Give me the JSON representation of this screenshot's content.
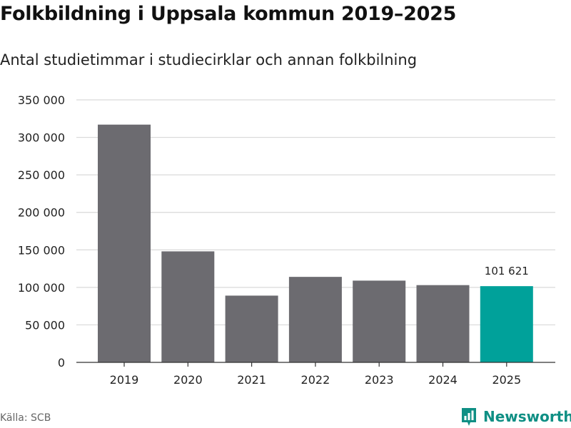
{
  "header": {
    "title": "Folkbildning i Uppsala kommun 2019–2025",
    "subtitle": "Antal studietimmar i studiecirklar och annan folkbilning"
  },
  "footer": {
    "source": "Källa: SCB",
    "brand": "Newsworthy"
  },
  "colors": {
    "bar": "#6c6b70",
    "highlight": "#00a19a",
    "grid": "#d9d9d9",
    "axis": "#333333",
    "text": "#222222"
  },
  "chart_data": {
    "type": "bar",
    "title": "Folkbildning i Uppsala kommun 2019–2025",
    "subtitle": "Antal studietimmar i studiecirklar och annan folkbilning",
    "xlabel": "",
    "ylabel": "",
    "categories": [
      "2019",
      "2020",
      "2021",
      "2022",
      "2023",
      "2024",
      "2025"
    ],
    "values": [
      317000,
      148000,
      89000,
      114000,
      109000,
      103000,
      101621
    ],
    "ylim": [
      0,
      350000
    ],
    "yticks": [
      0,
      50000,
      100000,
      150000,
      200000,
      250000,
      300000,
      350000
    ],
    "ytick_labels": [
      "0",
      "50 000",
      "100 000",
      "150 000",
      "200 000",
      "250 000",
      "300 000",
      "350 000"
    ],
    "highlight_index": 6,
    "data_labels": [
      {
        "index": 6,
        "text": "101 621"
      }
    ],
    "grid": true
  }
}
